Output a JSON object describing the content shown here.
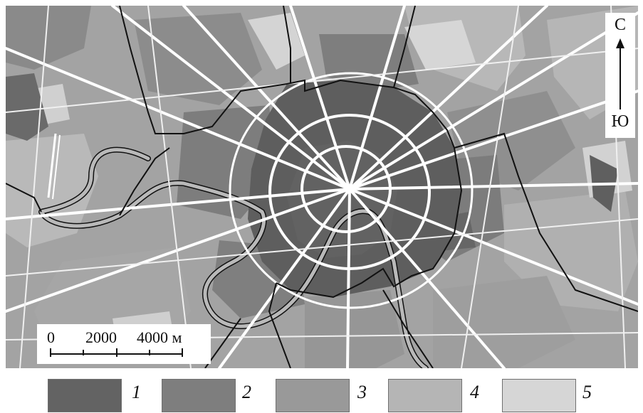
{
  "north_indicator": {
    "north_label": "С",
    "south_label": "Ю"
  },
  "scale_bar": {
    "labels": [
      "0",
      "2000",
      "4000 м"
    ]
  },
  "legend": {
    "items": [
      {
        "label": "1",
        "color": "#636363"
      },
      {
        "label": "2",
        "color": "#7e7e7e"
      },
      {
        "label": "3",
        "color": "#999999"
      },
      {
        "label": "4",
        "color": "#b5b5b5"
      },
      {
        "label": "5",
        "color": "#d6d6d6"
      }
    ]
  },
  "map_colors": {
    "road": "#ffffff",
    "border": "#111111",
    "river": "#b9b9b9"
  }
}
